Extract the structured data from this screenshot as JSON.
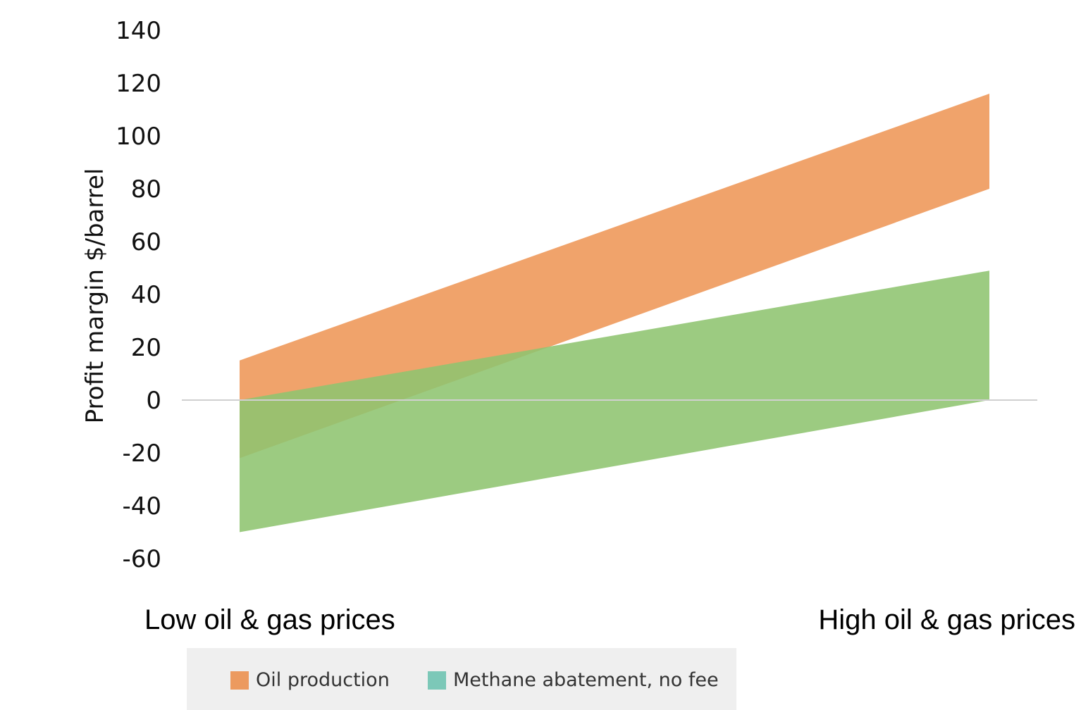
{
  "chart_data": {
    "type": "area",
    "ylabel": "Profit margin $/barrel",
    "ylim": [
      -60,
      140
    ],
    "yticks": [
      140,
      120,
      100,
      80,
      60,
      40,
      20,
      0,
      -20,
      -40,
      -60
    ],
    "ytick_labels": [
      "140",
      "120",
      "100",
      "80",
      "60",
      "40",
      "20",
      "0",
      "-20",
      "-40",
      "-60"
    ],
    "categories": [
      "Low oil & gas prices",
      "High oil & gas prices"
    ],
    "grid": false,
    "zero_line": true,
    "legend_position": "bottom",
    "series": [
      {
        "name": "Oil production",
        "color": "#f0a36b",
        "legend_color": "#ec9a5f",
        "upper": [
          15,
          116
        ],
        "lower": [
          -22,
          80
        ]
      },
      {
        "name": "Methane abatement, no fee",
        "color": "#8ec470",
        "legend_color": "#7cc8b8",
        "upper": [
          0,
          49
        ],
        "lower": [
          -50,
          0
        ]
      }
    ]
  }
}
